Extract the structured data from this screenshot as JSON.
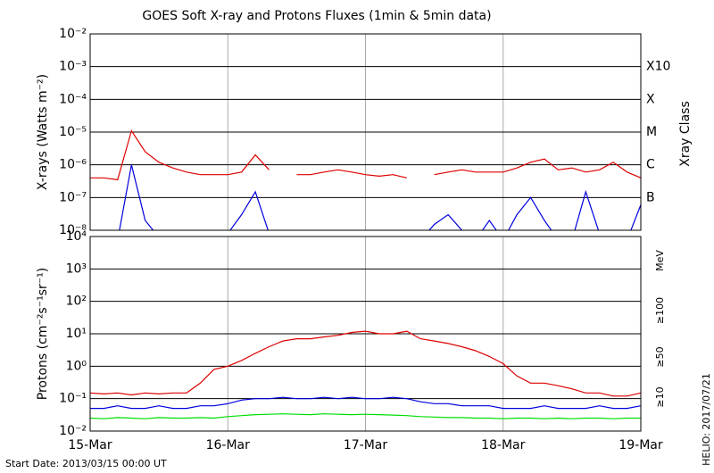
{
  "chart_data": [
    {
      "type": "line",
      "title": "GOES Soft X-ray and Protons Fluxes   (1min & 5min data)",
      "ylabel": "X-rays (Watts m⁻²)",
      "y2label": "Xray Class",
      "log_scale": true,
      "grid": true,
      "xlim": [
        0,
        4
      ],
      "ylim": [
        1e-08,
        0.01
      ],
      "yticks": [
        {
          "value": 1e-08,
          "label": "10⁻⁸"
        },
        {
          "value": 1e-07,
          "label": "10⁻⁷"
        },
        {
          "value": 1e-06,
          "label": "10⁻⁶"
        },
        {
          "value": 1e-05,
          "label": "10⁻⁵"
        },
        {
          "value": 0.0001,
          "label": "10⁻⁴"
        },
        {
          "value": 0.001,
          "label": "10⁻³"
        },
        {
          "value": 0.01,
          "label": "10⁻²"
        }
      ],
      "class_ticks": [
        {
          "value": 1e-07,
          "label": "B"
        },
        {
          "value": 1e-06,
          "label": "C"
        },
        {
          "value": 1e-05,
          "label": "M"
        },
        {
          "value": 0.0001,
          "label": "X"
        },
        {
          "value": 0.001,
          "label": "X10"
        }
      ],
      "x": [
        0,
        0.1,
        0.2,
        0.3,
        0.4,
        0.5,
        0.6,
        0.7,
        0.8,
        0.9,
        1,
        1.1,
        1.2,
        1.3,
        1.4,
        1.5,
        1.6,
        1.7,
        1.8,
        1.9,
        2,
        2.1,
        2.2,
        2.3,
        2.4,
        2.5,
        2.6,
        2.7,
        2.8,
        2.9,
        3,
        3.1,
        3.2,
        3.3,
        3.4,
        3.5,
        3.6,
        3.7,
        3.8,
        3.9,
        4
      ],
      "series": [
        {
          "color": "#dd0000",
          "values": [
            4e-07,
            4e-07,
            3.5e-07,
            1.1e-05,
            2.5e-06,
            1.2e-06,
            8e-07,
            6e-07,
            5e-07,
            5e-07,
            5e-07,
            6e-07,
            2e-06,
            7e-07,
            null,
            5e-07,
            5e-07,
            6e-07,
            7e-07,
            6e-07,
            5e-07,
            4.5e-07,
            5e-07,
            4e-07,
            null,
            5e-07,
            6e-07,
            7e-07,
            6e-07,
            6e-07,
            6e-07,
            8e-07,
            1.2e-06,
            1.5e-06,
            7e-07,
            8e-07,
            6e-07,
            7e-07,
            1.2e-06,
            6e-07,
            4e-07
          ]
        },
        {
          "color": "#0000dd",
          "values": [
            5e-09,
            5e-09,
            5e-09,
            1e-06,
            2e-08,
            6e-09,
            5e-09,
            5e-09,
            5e-09,
            5e-09,
            8e-09,
            3e-08,
            1.5e-07,
            8e-09,
            5e-09,
            5e-09,
            5e-09,
            8e-09,
            5e-09,
            5e-09,
            5e-09,
            5e-09,
            5e-09,
            5e-09,
            5e-09,
            1.5e-08,
            3e-08,
            1e-08,
            5e-09,
            2e-08,
            5e-09,
            3e-08,
            1e-07,
            2e-08,
            5e-09,
            5e-09,
            1.5e-07,
            8e-09,
            5e-09,
            5e-09,
            6e-08
          ]
        }
      ]
    },
    {
      "type": "line",
      "ylabel": "Protons (cm⁻²s⁻¹sr⁻¹)",
      "unit": "MeV",
      "log_scale": true,
      "grid": true,
      "threshold": 10,
      "xlim": [
        0,
        4
      ],
      "ylim": [
        0.01,
        10000
      ],
      "xticks": [
        {
          "value": 0,
          "label": "15-Mar"
        },
        {
          "value": 1,
          "label": "16-Mar"
        },
        {
          "value": 2,
          "label": "17-Mar"
        },
        {
          "value": 3,
          "label": "18-Mar"
        },
        {
          "value": 4,
          "label": "19-Mar"
        }
      ],
      "yticks": [
        {
          "value": 0.01,
          "label": "10⁻²"
        },
        {
          "value": 0.1,
          "label": "10⁻¹"
        },
        {
          "value": 1,
          "label": "10⁰"
        },
        {
          "value": 10,
          "label": "10¹"
        },
        {
          "value": 100,
          "label": "10²"
        },
        {
          "value": 1000,
          "label": "10³"
        },
        {
          "value": 10000,
          "label": "10⁴"
        }
      ],
      "x": [
        0,
        0.1,
        0.2,
        0.3,
        0.4,
        0.5,
        0.6,
        0.7,
        0.8,
        0.9,
        1,
        1.1,
        1.2,
        1.3,
        1.4,
        1.5,
        1.6,
        1.7,
        1.8,
        1.9,
        2,
        2.1,
        2.2,
        2.3,
        2.4,
        2.5,
        2.6,
        2.7,
        2.8,
        2.9,
        3,
        3.1,
        3.2,
        3.3,
        3.4,
        3.5,
        3.6,
        3.7,
        3.8,
        3.9,
        4
      ],
      "series": [
        {
          "name": "≥10",
          "color": "#dd0000",
          "values": [
            0.15,
            0.14,
            0.15,
            0.13,
            0.15,
            0.14,
            0.15,
            0.15,
            0.3,
            0.8,
            1.0,
            1.5,
            2.5,
            4,
            6,
            7,
            7,
            8,
            9,
            11,
            12,
            10,
            10,
            12,
            7,
            6,
            5,
            4,
            3,
            2,
            1.2,
            0.5,
            0.3,
            0.3,
            0.25,
            0.2,
            0.15,
            0.15,
            0.12,
            0.12,
            0.15
          ]
        },
        {
          "name": "≥50",
          "color": "#0000dd",
          "values": [
            0.05,
            0.05,
            0.06,
            0.05,
            0.05,
            0.06,
            0.05,
            0.05,
            0.06,
            0.06,
            0.07,
            0.09,
            0.1,
            0.1,
            0.11,
            0.1,
            0.1,
            0.11,
            0.1,
            0.11,
            0.1,
            0.1,
            0.11,
            0.1,
            0.08,
            0.07,
            0.07,
            0.06,
            0.06,
            0.06,
            0.05,
            0.05,
            0.05,
            0.06,
            0.05,
            0.05,
            0.05,
            0.06,
            0.05,
            0.05,
            0.06
          ]
        },
        {
          "name": "≥100",
          "color": "#00dd00",
          "values": [
            0.025,
            0.024,
            0.026,
            0.025,
            0.024,
            0.026,
            0.025,
            0.025,
            0.026,
            0.025,
            0.028,
            0.03,
            0.032,
            0.033,
            0.034,
            0.033,
            0.032,
            0.034,
            0.033,
            0.032,
            0.033,
            0.032,
            0.031,
            0.03,
            0.028,
            0.027,
            0.026,
            0.026,
            0.025,
            0.025,
            0.024,
            0.025,
            0.025,
            0.024,
            0.025,
            0.024,
            0.025,
            0.025,
            0.024,
            0.025,
            0.025
          ]
        }
      ]
    }
  ],
  "footer": {
    "start_date": "Start Date: 2013/03/15 00:00 UT",
    "credit": "HELIO: 2017/07/21"
  }
}
